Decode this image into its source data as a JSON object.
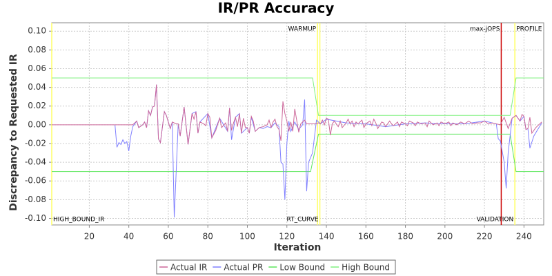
{
  "chart_data": {
    "type": "line",
    "title": "IR/PR Accuracy",
    "xlabel": "Iteration",
    "ylabel": "Discrepancy to Requested IR",
    "xlim": [
      1,
      250
    ],
    "ylim": [
      -0.107,
      0.109
    ],
    "xticks": [
      20,
      40,
      60,
      80,
      100,
      120,
      140,
      160,
      180,
      200,
      220,
      240
    ],
    "yticks": [
      {
        "value": 0.1,
        "label": "0.10"
      },
      0.08,
      0.06,
      0.04,
      0.02,
      {
        "value": 0,
        "label": "0.00"
      },
      -0.02,
      -0.04,
      -0.06,
      -0.08,
      {
        "value": -0.1,
        "label": "-0.10"
      }
    ],
    "grid": true,
    "legend": "bottom",
    "series": [
      {
        "name": "Actual IR",
        "color": "#cc6699",
        "x": [
          1,
          42,
          44,
          45,
          47,
          48,
          49,
          50,
          51,
          52,
          53,
          54,
          55,
          56,
          58,
          59,
          61,
          62,
          64,
          65,
          66,
          68,
          70,
          72,
          73,
          74,
          75,
          76,
          78,
          79,
          80,
          81,
          82,
          84,
          86,
          87,
          89,
          90,
          91,
          92,
          93,
          94,
          95,
          96,
          97,
          98,
          99,
          100,
          101,
          102,
          103,
          104,
          106,
          108,
          110,
          111,
          112,
          113,
          114,
          115,
          116,
          117,
          118,
          119,
          120,
          121,
          122,
          123,
          124,
          126,
          127,
          128,
          129,
          130,
          132,
          134,
          136,
          137,
          138,
          139,
          140,
          141,
          142,
          143,
          144,
          146,
          147,
          148,
          150,
          151,
          152,
          153,
          154,
          155,
          156,
          158,
          159,
          160,
          162,
          163,
          164,
          165,
          166,
          168,
          169,
          170,
          172,
          173,
          174,
          176,
          177,
          178,
          180,
          181,
          182,
          184,
          185,
          186,
          188,
          190,
          191,
          192,
          194,
          196,
          197,
          198,
          200,
          202,
          203,
          204,
          206,
          208,
          210,
          212,
          214,
          216,
          218,
          220,
          222,
          224,
          226,
          228,
          230,
          232,
          234,
          236,
          238,
          239,
          240,
          241,
          242,
          243,
          244,
          246,
          249
        ],
        "values": [
          0,
          0,
          0.004,
          -0.003,
          0,
          0.003,
          -0.003,
          0.015,
          0.01,
          0.019,
          0.02,
          0.043,
          -0.015,
          -0.019,
          0.014,
          0.01,
          -0.004,
          0.003,
          0.001,
          0.001,
          -0.012,
          0.019,
          -0.021,
          0.012,
          0.006,
          0.014,
          -0.009,
          0.003,
          0.001,
          -0.001,
          0.012,
          0.008,
          -0.014,
          -0.006,
          0.007,
          -0.003,
          0.002,
          -0.007,
          0.018,
          -0.006,
          0.002,
          0.008,
          -0.002,
          0.012,
          -0.009,
          0.007,
          -0.003,
          -0.003,
          -0.009,
          0.009,
          0.004,
          -0.007,
          -0.003,
          -0.002,
          0,
          0.005,
          -0.003,
          0.003,
          0.006,
          -0.002,
          -0.005,
          -0.017,
          0.025,
          0.012,
          0.004,
          -0.007,
          0.003,
          -0.007,
          0.017,
          -0.008,
          0.001,
          0.003,
          0.005,
          0.001,
          0.001,
          0.001,
          0.002,
          0.001,
          0.005,
          0,
          0.007,
          0.006,
          -0.011,
          0.001,
          0.004,
          -0.002,
          0.004,
          -0.003,
          0.002,
          0.006,
          0.001,
          0.004,
          -0.002,
          0.003,
          0.001,
          0.005,
          -0.003,
          0.001,
          0.004,
          -0.001,
          0.006,
          0.002,
          -0.004,
          0.003,
          0.002,
          -0.002,
          0.004,
          0.001,
          -0.001,
          0.003,
          -0.002,
          0.003,
          0.001,
          -0.001,
          0.004,
          0.002,
          -0.001,
          0.003,
          0.001,
          0.002,
          -0.002,
          0.004,
          0,
          0.002,
          -0.001,
          0.003,
          0.001,
          0.003,
          -0.001,
          0.002,
          0,
          0.003,
          0.001,
          0.004,
          0.001,
          0.002,
          0.002,
          0.004,
          0.001,
          0.002,
          0.001,
          0,
          0.008,
          -0.004,
          0.007,
          0.01,
          0.004,
          0.011,
          0.009,
          -0.005,
          -0.004,
          0.008,
          -0.009,
          -0.003,
          0.003
        ]
      },
      {
        "name": "Actual PR",
        "color": "#7f7fff",
        "x": [
          33,
          34,
          35,
          36,
          37,
          38,
          39,
          40,
          41,
          42,
          44,
          45,
          47,
          48,
          49,
          50,
          51,
          52,
          53,
          54,
          55,
          56,
          58,
          59,
          61,
          62,
          63,
          65,
          66,
          68,
          70,
          72,
          74,
          75,
          76,
          80,
          82,
          86,
          90,
          91,
          92,
          94,
          96,
          97,
          100,
          101,
          102,
          104,
          106,
          108,
          110,
          112,
          114,
          116,
          117,
          118,
          119,
          120,
          121,
          122,
          124,
          126,
          128,
          129,
          130,
          131,
          133,
          135,
          137,
          140,
          150,
          160,
          170,
          180,
          190,
          200,
          210,
          220,
          226,
          227,
          228,
          230,
          231,
          232,
          234,
          236,
          238,
          240,
          241,
          242,
          243,
          245,
          249
        ],
        "values": [
          0,
          -0.024,
          -0.019,
          -0.021,
          -0.016,
          -0.02,
          -0.018,
          -0.028,
          -0.012,
          -0.002,
          0.004,
          -0.003,
          0,
          0.003,
          -0.003,
          0.015,
          0.01,
          0.019,
          0.02,
          0.043,
          -0.015,
          -0.019,
          0.014,
          0.01,
          -0.004,
          0.003,
          -0.099,
          0.001,
          -0.012,
          0.019,
          -0.021,
          0.012,
          0.014,
          -0.009,
          0.003,
          0.012,
          -0.014,
          0.007,
          -0.007,
          0.018,
          -0.016,
          0.008,
          0.012,
          -0.009,
          -0.003,
          -0.009,
          0.008,
          -0.007,
          -0.003,
          -0.004,
          -0.002,
          -0.003,
          0.002,
          -0.002,
          -0.04,
          -0.042,
          -0.08,
          -0.02,
          0.004,
          -0.007,
          0.003,
          -0.005,
          0,
          0.027,
          -0.071,
          -0.04,
          -0.03,
          0.005,
          0.001,
          0.006,
          0.002,
          0.001,
          -0.002,
          0.001,
          0.002,
          0.001,
          0.001,
          0.004,
          0.001,
          -0.015,
          -0.017,
          -0.04,
          -0.068,
          -0.03,
          0.007,
          0.01,
          0.004,
          0.009,
          -0.005,
          -0.004,
          -0.025,
          -0.012,
          0.002
        ]
      },
      {
        "name": "Low Bound",
        "color": "#5ae65a",
        "x": [
          1,
          132,
          136,
          233,
          236,
          250
        ],
        "values": [
          -0.05,
          -0.05,
          -0.01,
          -0.01,
          -0.05,
          -0.05
        ]
      },
      {
        "name": "High Bound",
        "color": "#7ff07f",
        "x": [
          1,
          133,
          136,
          233,
          236,
          250
        ],
        "values": [
          0.05,
          0.05,
          0.01,
          0.01,
          0.05,
          0.05
        ]
      }
    ],
    "markers": [
      {
        "label": "HIGH_BOUND_IR",
        "x": 1,
        "color": "#ffff66",
        "position": "bottom",
        "align": "start"
      },
      {
        "label": "WARMUP",
        "x": 135.5,
        "color": "#ffff66",
        "position": "top",
        "align": "end"
      },
      {
        "label": "RT_CURVE",
        "x": 136.7,
        "color": "#ffff66",
        "position": "bottom",
        "align": "end"
      },
      {
        "label": "max-jOPS",
        "x": 228.5,
        "color": "#cc0000",
        "position": "top",
        "align": "end"
      },
      {
        "label": "VALIDATION",
        "x": 235.4,
        "color": "#ffff66",
        "position": "bottom",
        "align": "end"
      },
      {
        "label": "PROFILE",
        "x": 235.4,
        "color": "#ffff66",
        "position": "top",
        "align": "start"
      }
    ]
  }
}
